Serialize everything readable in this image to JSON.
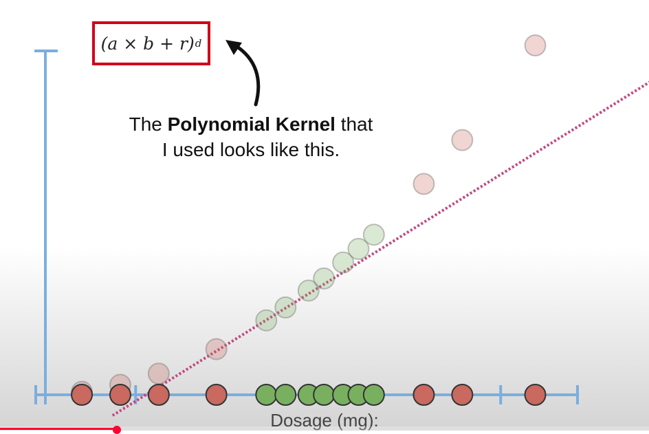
{
  "formula": {
    "base": "(a × b + r)",
    "exponent": "d"
  },
  "caption": {
    "line1_pre": "The ",
    "line1_bold": "Polynomial Kernel",
    "line1_post": " that",
    "line2": "I used looks like this."
  },
  "colors": {
    "axis": "#7aaee0",
    "formula_border": "#d0021b",
    "dotted_line": "#c2477f",
    "red_point": "#c9695f",
    "green_point": "#79b060",
    "progress": "#ff0033"
  },
  "video_progress": 0.18,
  "chart_data": {
    "type": "scatter",
    "xlabel": "Dosage (mg):",
    "series": [
      {
        "name": "",
        "points": [
          {
            "dosage": 1.2,
            "class": "red"
          },
          {
            "dosage": 2.2,
            "class": "red"
          },
          {
            "dosage": 3.2,
            "class": "red"
          },
          {
            "dosage": 4.7,
            "class": "red"
          },
          {
            "dosage": 6.0,
            "class": "green"
          },
          {
            "dosage": 6.5,
            "class": "green"
          },
          {
            "dosage": 7.1,
            "class": "green"
          },
          {
            "dosage": 7.5,
            "class": "green"
          },
          {
            "dosage": 8.0,
            "class": "green"
          },
          {
            "dosage": 8.4,
            "class": "green"
          },
          {
            "dosage": 8.8,
            "class": "green"
          },
          {
            "dosage": 10.1,
            "class": "red"
          },
          {
            "dosage": 11.1,
            "class": "red"
          },
          {
            "dosage": 13.0,
            "class": "red"
          }
        ]
      },
      {
        "name": "",
        "points": [
          {
            "dosage": 1.2,
            "squared": 1.44,
            "class": "red"
          },
          {
            "dosage": 2.2,
            "squared": 4.84,
            "class": "red"
          },
          {
            "dosage": 3.2,
            "squared": 10.24,
            "class": "red"
          },
          {
            "dosage": 4.7,
            "squared": 22.09,
            "class": "red"
          },
          {
            "dosage": 6.0,
            "squared": 36.0,
            "class": "green"
          },
          {
            "dosage": 6.5,
            "squared": 42.25,
            "class": "green"
          },
          {
            "dosage": 7.1,
            "squared": 50.41,
            "class": "green"
          },
          {
            "dosage": 7.5,
            "squared": 56.25,
            "class": "green"
          },
          {
            "dosage": 8.0,
            "squared": 64.0,
            "class": "green"
          },
          {
            "dosage": 8.4,
            "squared": 70.56,
            "class": "green"
          },
          {
            "dosage": 8.8,
            "squared": 77.44,
            "class": "green"
          },
          {
            "dosage": 10.1,
            "squared": 102.01,
            "class": "red"
          },
          {
            "dosage": 11.1,
            "squared": 123.21,
            "class": "red"
          },
          {
            "dosage": 13.0,
            "squared": 169.0,
            "class": "red"
          }
        ]
      }
    ],
    "classifier_line": [
      {
        "dosage": 2.0,
        "squared": -10.0
      },
      {
        "dosage": 16.3,
        "squared": 155.0
      }
    ],
    "x_ticks": [
      0,
      2.6,
      12.1,
      14.1
    ],
    "xlim": [
      0,
      14.1
    ],
    "ylim": [
      0,
      175
    ]
  }
}
